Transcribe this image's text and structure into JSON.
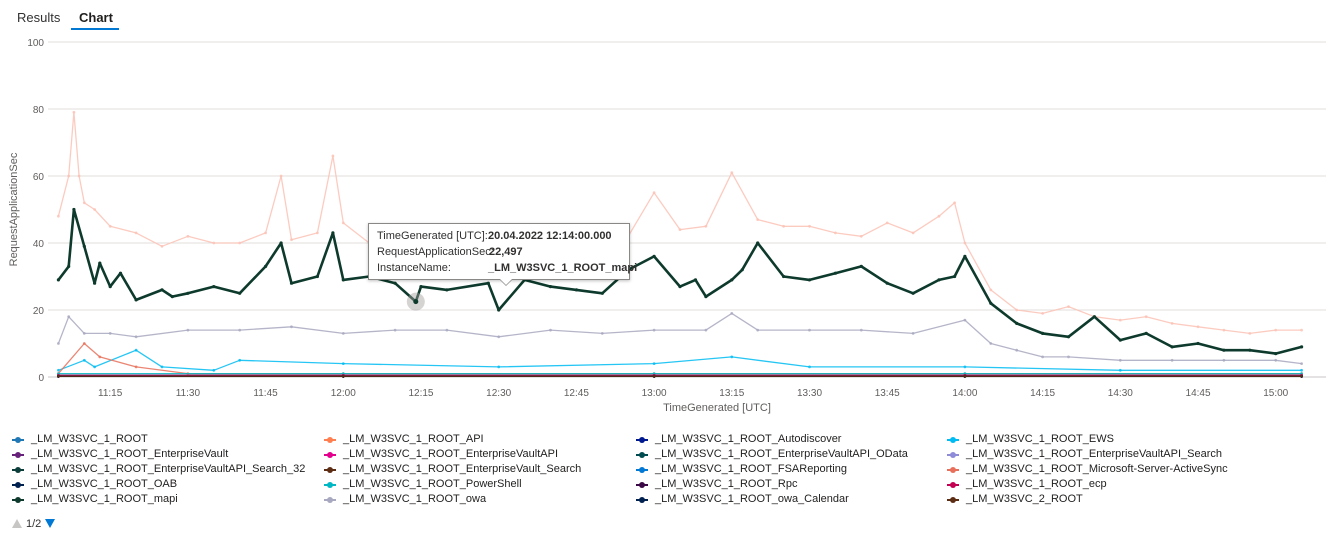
{
  "tabs": [
    {
      "label": "Results",
      "active": false
    },
    {
      "label": "Chart",
      "active": true
    }
  ],
  "tooltip": {
    "rows": [
      {
        "key": "TimeGenerated [UTC]:",
        "value": "20.04.2022 12:14:00.000"
      },
      {
        "key": "RequestApplicationSec:",
        "value": "22,497"
      },
      {
        "key": "InstanceName:",
        "value": "_LM_W3SVC_1_ROOT_mapi"
      }
    ]
  },
  "pager": {
    "label": "1/2"
  },
  "chart_data": {
    "type": "line",
    "xlabel": "TimeGenerated [UTC]",
    "ylabel": "RequestApplicationSec",
    "ylim": [
      0,
      100
    ],
    "yticks": [
      0,
      20,
      40,
      60,
      80,
      100
    ],
    "xlim": [
      "11:03",
      "15:07"
    ],
    "xticks": [
      "11:15",
      "11:30",
      "11:45",
      "12:00",
      "12:15",
      "12:30",
      "12:45",
      "13:00",
      "13:15",
      "13:30",
      "13:45",
      "14:00",
      "14:15",
      "14:30",
      "14:45",
      "15:00"
    ],
    "grid": true,
    "legend_position": "bottom",
    "highlighted_point": {
      "x": "12:14",
      "y": 22.497,
      "series": "_LM_W3SVC_1_ROOT_mapi"
    },
    "series": [
      {
        "name": "_LM_W3SVC_1_ROOT",
        "color": "#1f77b4",
        "x": [
          "11:05",
          "12:00",
          "13:00",
          "14:00",
          "15:05"
        ],
        "values": [
          0.5,
          0.5,
          0.5,
          0.5,
          0.5
        ]
      },
      {
        "name": "_LM_W3SVC_1_ROOT_API",
        "color": "#ff7f50",
        "x": [
          "11:05",
          "12:00",
          "13:00",
          "14:00",
          "15:05"
        ],
        "values": [
          0.3,
          0.3,
          0.3,
          0.3,
          0.3
        ]
      },
      {
        "name": "_LM_W3SVC_1_ROOT_Autodiscover",
        "color": "#00188f",
        "x": [
          "11:05",
          "12:00",
          "13:00",
          "14:00",
          "15:05"
        ],
        "values": [
          0.2,
          0.2,
          0.2,
          0.2,
          0.2
        ]
      },
      {
        "name": "_LM_W3SVC_1_ROOT_EWS",
        "color": "#00bcf2",
        "x": [
          "11:05",
          "11:10",
          "11:12",
          "11:20",
          "11:25",
          "11:35",
          "11:40",
          "12:00",
          "12:30",
          "13:00",
          "13:15",
          "13:30",
          "14:00",
          "14:30",
          "15:05"
        ],
        "values": [
          2,
          5,
          3,
          8,
          3,
          2,
          5,
          4,
          3,
          4,
          6,
          3,
          3,
          2,
          2
        ]
      },
      {
        "name": "_LM_W3SVC_1_ROOT_EnterpriseVault",
        "color": "#68217a",
        "x": [
          "11:05",
          "12:00",
          "13:00",
          "14:00",
          "15:05"
        ],
        "values": [
          0.2,
          0.2,
          0.2,
          0.2,
          0.2
        ]
      },
      {
        "name": "_LM_W3SVC_1_ROOT_EnterpriseVaultAPI",
        "color": "#e3008c",
        "x": [
          "11:05",
          "12:00",
          "13:00",
          "14:00",
          "15:05"
        ],
        "values": [
          0.2,
          0.2,
          0.2,
          0.2,
          0.2
        ]
      },
      {
        "name": "_LM_W3SVC_1_ROOT_EnterpriseVaultAPI_OData",
        "color": "#004b50",
        "x": [
          "11:05",
          "12:00",
          "13:00",
          "14:00",
          "15:05"
        ],
        "values": [
          0.2,
          0.2,
          0.2,
          0.2,
          0.2
        ]
      },
      {
        "name": "_LM_W3SVC_1_ROOT_EnterpriseVaultAPI_Search",
        "color": "#8e8cd8",
        "x": [
          "11:05",
          "12:00",
          "13:00",
          "14:00",
          "15:05"
        ],
        "values": [
          0.2,
          0.2,
          0.2,
          0.2,
          0.2
        ]
      },
      {
        "name": "_LM_W3SVC_1_ROOT_EnterpriseVaultAPI_Search_32",
        "color": "#0b3d3a",
        "x": [
          "11:05",
          "12:00",
          "13:00",
          "14:00",
          "15:05"
        ],
        "values": [
          0.2,
          0.2,
          0.2,
          0.2,
          0.2
        ]
      },
      {
        "name": "_LM_W3SVC_1_ROOT_EnterpriseVault_Search",
        "color": "#5c2d12",
        "x": [
          "11:05",
          "12:00",
          "13:00",
          "14:00",
          "15:05"
        ],
        "values": [
          0.2,
          0.2,
          0.2,
          0.2,
          0.2
        ]
      },
      {
        "name": "_LM_W3SVC_1_ROOT_FSAReporting",
        "color": "#0078d4",
        "x": [
          "11:05",
          "12:00",
          "13:00",
          "14:00",
          "15:05"
        ],
        "values": [
          0.2,
          0.2,
          0.2,
          0.2,
          0.2
        ]
      },
      {
        "name": "_LM_W3SVC_1_ROOT_Microsoft-Server-ActiveSync",
        "color": "#e8705a",
        "x": [
          "11:05",
          "11:10",
          "11:13",
          "11:20",
          "11:30",
          "12:00",
          "13:00",
          "14:00",
          "15:05"
        ],
        "values": [
          1,
          10,
          6,
          3,
          1,
          1,
          1,
          1,
          1
        ]
      },
      {
        "name": "_LM_W3SVC_1_ROOT_OAB",
        "color": "#002050",
        "x": [
          "11:05",
          "12:00",
          "13:00",
          "14:00",
          "15:05"
        ],
        "values": [
          0.2,
          0.2,
          0.2,
          0.2,
          0.2
        ]
      },
      {
        "name": "_LM_W3SVC_1_ROOT_PowerShell",
        "color": "#00b7c3",
        "x": [
          "11:05",
          "12:00",
          "13:00",
          "14:00",
          "15:05"
        ],
        "values": [
          1,
          1,
          1,
          1,
          1
        ]
      },
      {
        "name": "_LM_W3SVC_1_ROOT_Rpc",
        "color": "#3a0844",
        "x": [
          "11:05",
          "12:00",
          "13:00",
          "14:00",
          "15:05"
        ],
        "values": [
          0.2,
          0.2,
          0.2,
          0.2,
          0.2
        ]
      },
      {
        "name": "_LM_W3SVC_1_ROOT_ecp",
        "color": "#c30052",
        "x": [
          "11:05",
          "12:00",
          "13:00",
          "14:00",
          "15:05"
        ],
        "values": [
          0.5,
          0.5,
          0.5,
          0.5,
          0.5
        ]
      },
      {
        "name": "_LM_W3SVC_1_ROOT_mapi",
        "color": "#0d3a2c",
        "x": [
          "11:05",
          "11:07",
          "11:08",
          "11:10",
          "11:12",
          "11:13",
          "11:15",
          "11:17",
          "11:20",
          "11:25",
          "11:27",
          "11:30",
          "11:35",
          "11:40",
          "11:45",
          "11:48",
          "11:50",
          "11:55",
          "11:58",
          "12:00",
          "12:05",
          "12:10",
          "12:14",
          "12:15",
          "12:20",
          "12:28",
          "12:30",
          "12:35",
          "12:40",
          "12:45",
          "12:50",
          "12:55",
          "13:00",
          "13:05",
          "13:08",
          "13:10",
          "13:15",
          "13:17",
          "13:20",
          "13:25",
          "13:30",
          "13:35",
          "13:40",
          "13:45",
          "13:50",
          "13:55",
          "13:58",
          "14:00",
          "14:05",
          "14:10",
          "14:15",
          "14:20",
          "14:25",
          "14:30",
          "14:35",
          "14:40",
          "14:45",
          "14:50",
          "14:55",
          "15:00",
          "15:05"
        ],
        "values": [
          29,
          33,
          50,
          39,
          28,
          34,
          27,
          31,
          23,
          26,
          24,
          25,
          27,
          25,
          33,
          40,
          28,
          30,
          43,
          29,
          30,
          28,
          22.5,
          27,
          26,
          28,
          20,
          29,
          27,
          26,
          25,
          32,
          36,
          27,
          29,
          24,
          29,
          32,
          40,
          30,
          29,
          31,
          33,
          28,
          25,
          29,
          30,
          36,
          22,
          16,
          13,
          12,
          18,
          11,
          13,
          9,
          10,
          8,
          8,
          7,
          9
        ]
      },
      {
        "name": "_LM_W3SVC_1_ROOT_owa",
        "color": "#a8a8c0",
        "x": [
          "11:05",
          "11:07",
          "11:10",
          "11:15",
          "11:20",
          "11:30",
          "11:40",
          "11:50",
          "12:00",
          "12:10",
          "12:20",
          "12:30",
          "12:40",
          "12:50",
          "13:00",
          "13:10",
          "13:15",
          "13:20",
          "13:30",
          "13:40",
          "13:50",
          "14:00",
          "14:05",
          "14:10",
          "14:15",
          "14:20",
          "14:30",
          "14:40",
          "14:50",
          "15:00",
          "15:05"
        ],
        "values": [
          10,
          18,
          13,
          13,
          12,
          14,
          14,
          15,
          13,
          14,
          14,
          12,
          14,
          13,
          14,
          14,
          19,
          14,
          14,
          14,
          13,
          17,
          10,
          8,
          6,
          6,
          5,
          5,
          5,
          5,
          4
        ]
      },
      {
        "name": "_LM_W3SVC_1_ROOT_owa_Calendar",
        "color": "#002050",
        "x": [
          "11:05",
          "12:00",
          "13:00",
          "14:00",
          "15:05"
        ],
        "values": [
          0.2,
          0.2,
          0.2,
          0.2,
          0.2
        ]
      },
      {
        "name": "_LM_W3SVC_2_ROOT",
        "color": "#5c2d12",
        "x": [
          "11:05",
          "12:00",
          "13:00",
          "14:00",
          "15:05"
        ],
        "values": [
          0.2,
          0.2,
          0.2,
          0.2,
          0.2
        ]
      },
      {
        "name": "",
        "color": "#fbc2b5",
        "x": [
          "11:05",
          "11:07",
          "11:08",
          "11:09",
          "11:10",
          "11:12",
          "11:15",
          "11:20",
          "11:25",
          "11:30",
          "11:35",
          "11:40",
          "11:45",
          "11:48",
          "11:50",
          "11:55",
          "11:58",
          "12:00",
          "12:05",
          "12:10",
          "12:15",
          "12:20",
          "12:25",
          "12:30",
          "12:35",
          "12:40",
          "12:45",
          "12:50",
          "12:55",
          "13:00",
          "13:05",
          "13:10",
          "13:15",
          "13:20",
          "13:25",
          "13:30",
          "13:35",
          "13:40",
          "13:45",
          "13:50",
          "13:55",
          "13:58",
          "14:00",
          "14:05",
          "14:10",
          "14:15",
          "14:20",
          "14:25",
          "14:30",
          "14:35",
          "14:40",
          "14:45",
          "14:50",
          "14:55",
          "15:00",
          "15:05"
        ],
        "values": [
          48,
          60,
          79,
          60,
          52,
          50,
          45,
          43,
          39,
          42,
          40,
          40,
          43,
          60,
          41,
          43,
          66,
          46,
          40,
          39,
          40,
          40,
          42,
          42,
          40,
          42,
          44,
          40,
          42,
          55,
          44,
          45,
          61,
          47,
          45,
          45,
          43,
          42,
          46,
          43,
          48,
          52,
          40,
          26,
          20,
          19,
          21,
          18,
          17,
          18,
          16,
          15,
          14,
          13,
          14,
          14
        ]
      }
    ]
  }
}
